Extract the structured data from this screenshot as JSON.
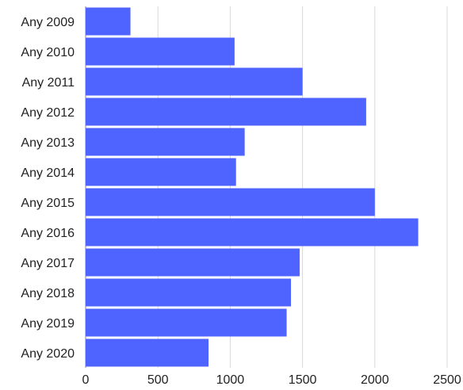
{
  "chart_data": {
    "type": "bar",
    "orientation": "horizontal",
    "title": "",
    "xlabel": "",
    "ylabel": "",
    "categories": [
      "Any 2009",
      "Any 2010",
      "Any 2011",
      "Any 2012",
      "Any 2013",
      "Any 2014",
      "Any 2015",
      "Any 2016",
      "Any 2017",
      "Any 2018",
      "Any 2019",
      "Any 2020"
    ],
    "values": [
      310,
      1030,
      1500,
      1940,
      1100,
      1040,
      2000,
      2300,
      1480,
      1420,
      1390,
      850
    ],
    "xlim": [
      0,
      2500
    ],
    "xticks": [
      0,
      500,
      1000,
      1500,
      2000,
      2500
    ],
    "xtick_labels": [
      "0",
      "500",
      "1000",
      "1500",
      "2000",
      "2500"
    ],
    "grid": "vertical",
    "legend": "none",
    "bar_color": "#4f63ff",
    "grid_color": "#d9d9d9"
  }
}
